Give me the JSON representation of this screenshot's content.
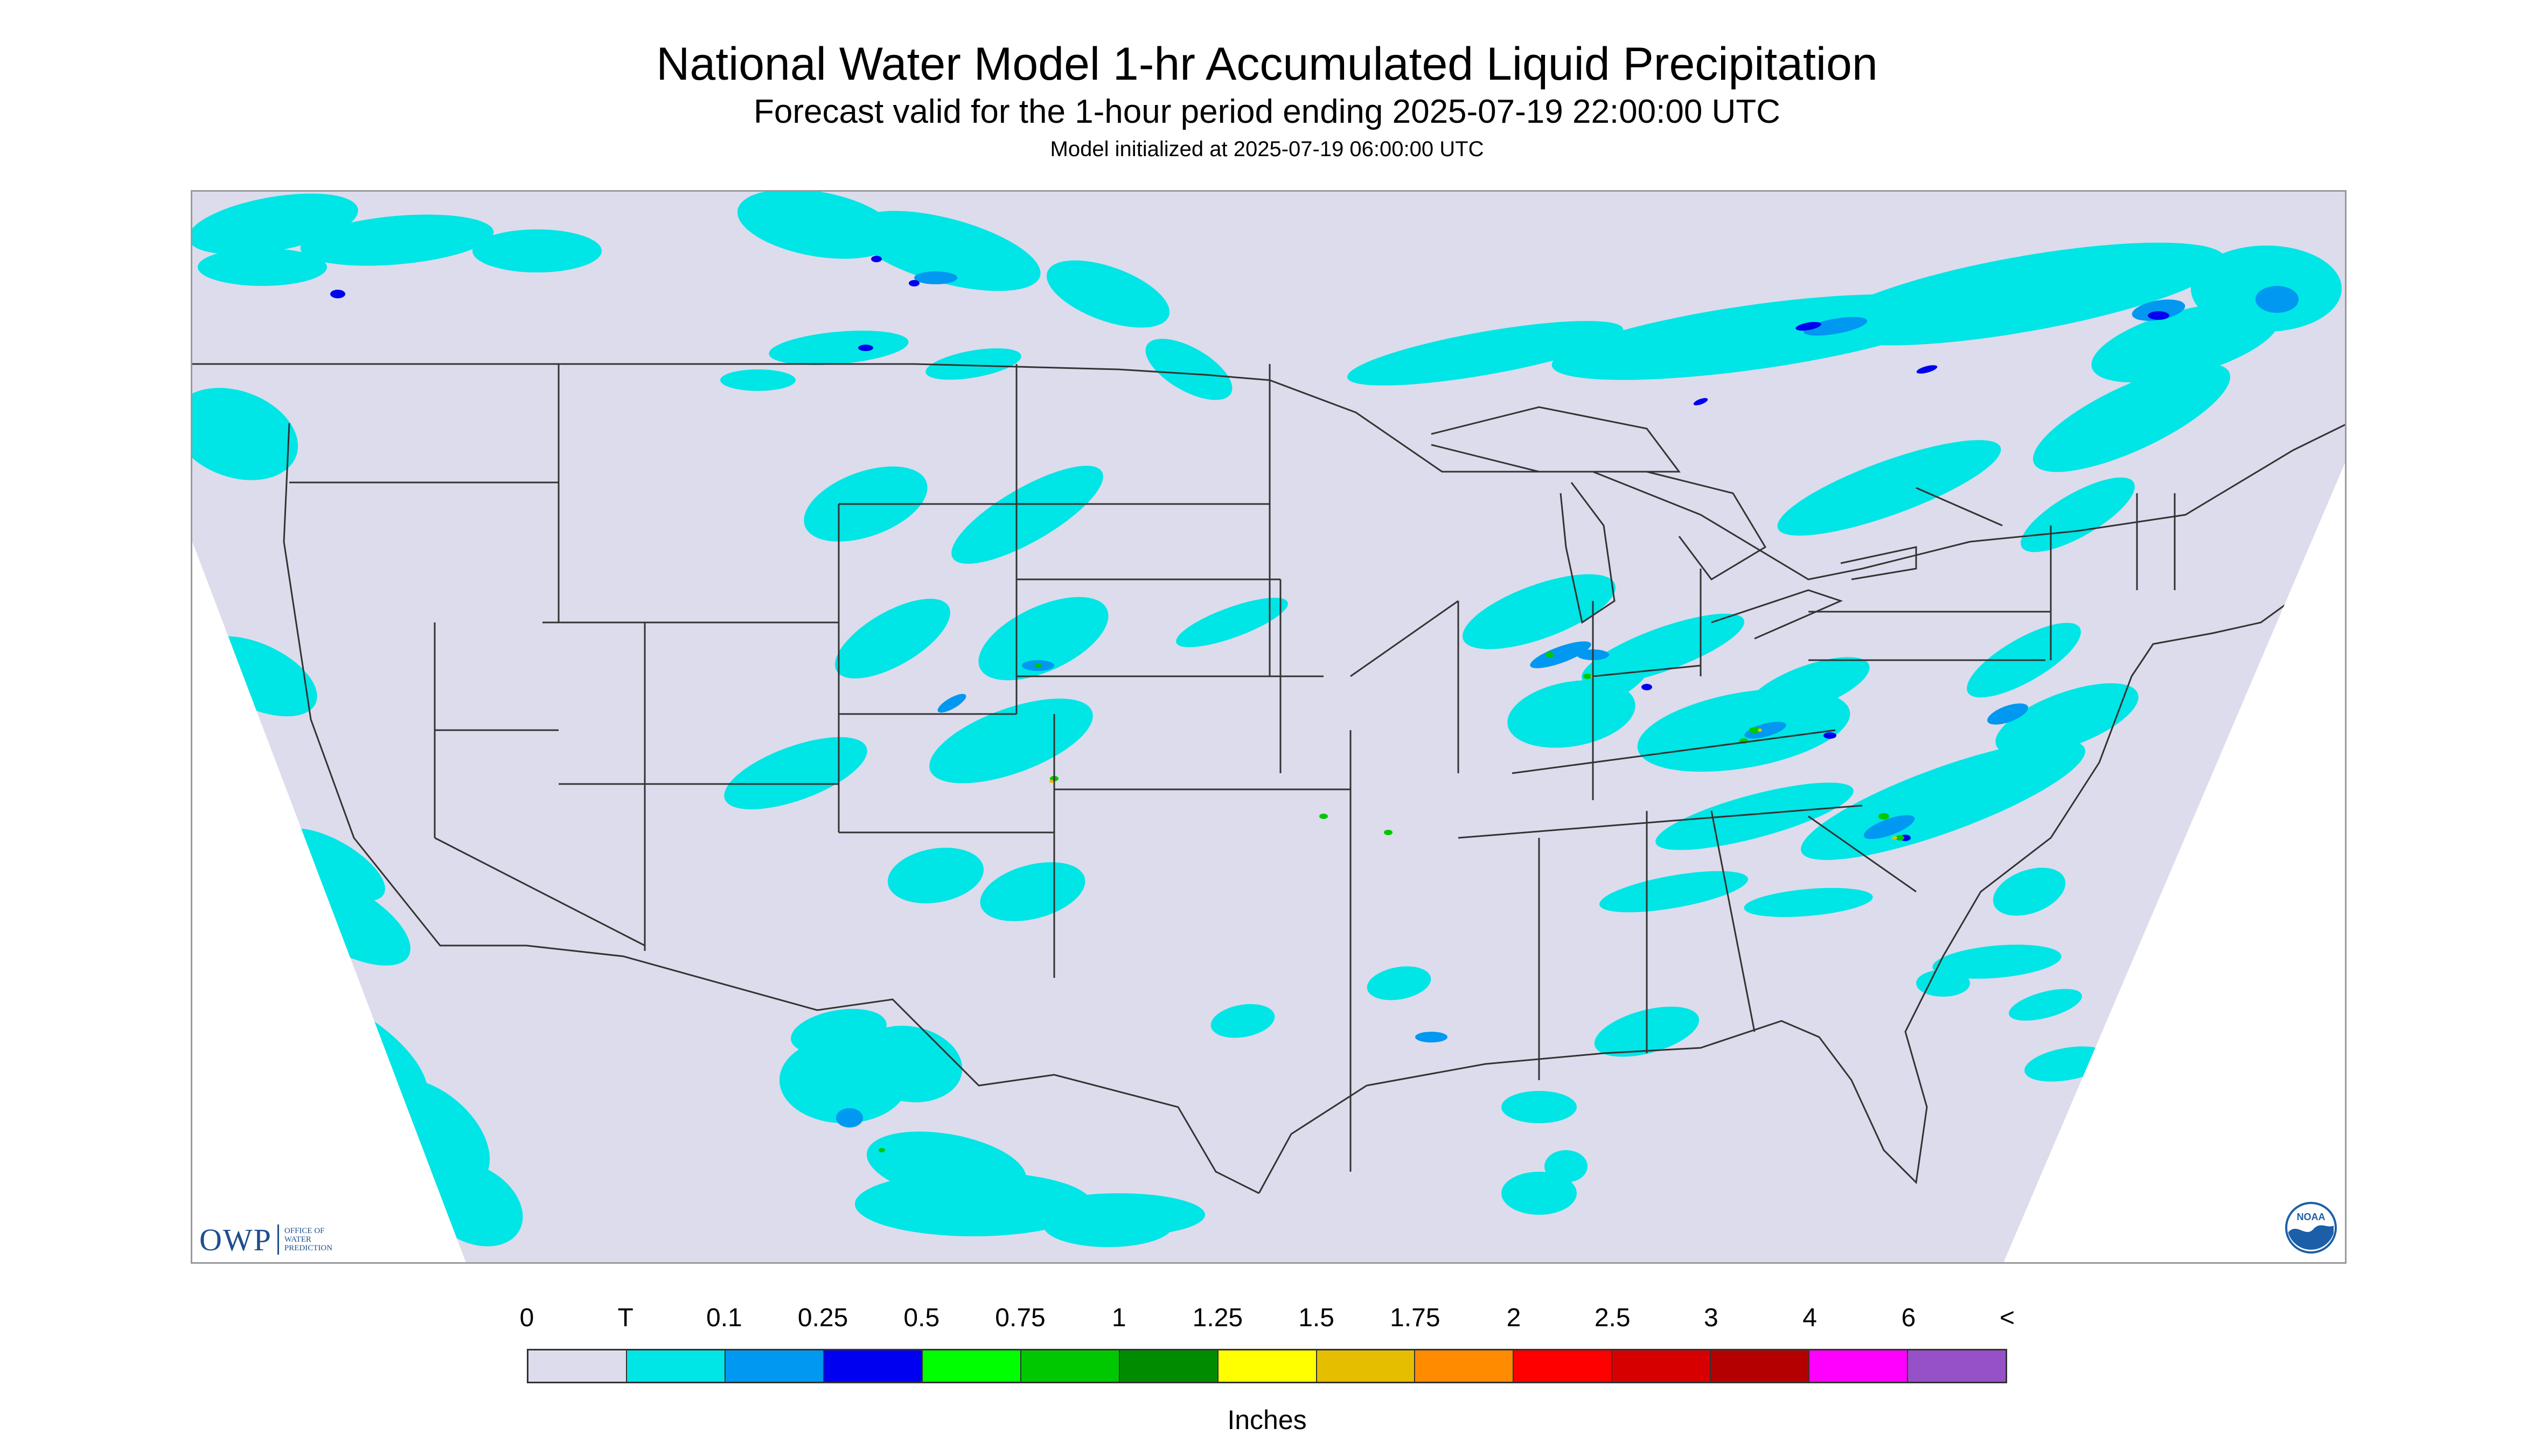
{
  "header": {
    "title": "National Water Model 1-hr Accumulated Liquid Precipitation",
    "subtitle": "Forecast valid for the 1-hour period ending 2025-07-19 22:00:00 UTC",
    "init": "Model initialized at 2025-07-19 06:00:00 UTC"
  },
  "map": {
    "background_color": "#dcdcec",
    "outside_color": "#ffffff",
    "boundary_color": "#333333"
  },
  "logos": {
    "owp_mark": "OWP",
    "owp_line1": "OFFICE OF",
    "owp_line2": "WATER",
    "owp_line3": "PREDICTION",
    "noaa_text": "NOAA",
    "owp_icon": "owp-logo-icon",
    "noaa_icon": "noaa-logo-icon"
  },
  "legend": {
    "units": "Inches",
    "ticks": [
      "0",
      "T",
      "0.1",
      "0.25",
      "0.5",
      "0.75",
      "1",
      "1.25",
      "1.5",
      "1.75",
      "2",
      "2.5",
      "3",
      "4",
      "6",
      "<"
    ],
    "colors": [
      "#dcdcec",
      "#00e5e5",
      "#0098f0",
      "#0000f0",
      "#00ff00",
      "#00c800",
      "#008c00",
      "#ffff00",
      "#e5be00",
      "#ff8c00",
      "#ff0000",
      "#d70000",
      "#b40000",
      "#ff00ff",
      "#9650c8"
    ]
  }
}
